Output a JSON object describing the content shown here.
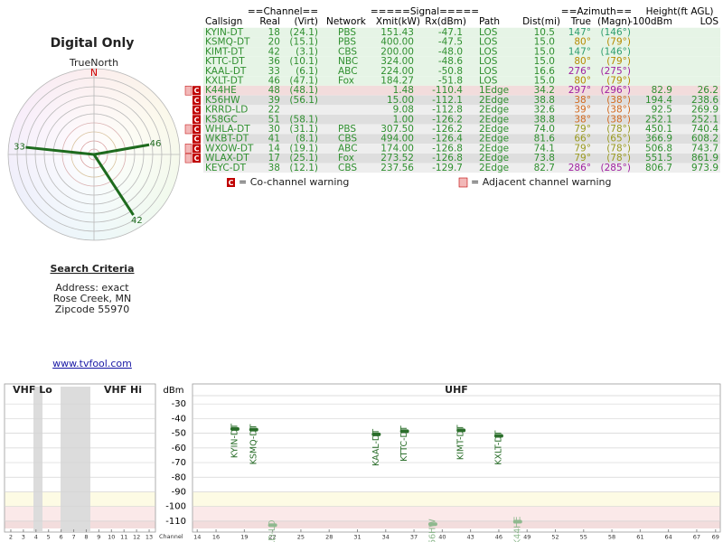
{
  "header": {
    "title": "Digital Only"
  },
  "compass": {
    "label": "TrueNorth",
    "north": "N",
    "rays": [
      {
        "label": "33",
        "azimuth": 276
      },
      {
        "label": "46",
        "azimuth": 80
      },
      {
        "label": "42",
        "azimuth": 147
      }
    ]
  },
  "table": {
    "group_headers": [
      "==Channel==",
      "=====Signal=====",
      "==Azimuth==",
      "Height(ft AGL)"
    ],
    "columns": [
      "Callsign",
      "Real",
      "(Virt)",
      "Network",
      "Xmit(kW)",
      "Rx(dBm)",
      "Path",
      "Dist(mi)",
      "True",
      "(Magn)",
      "-100dBm",
      "LOS"
    ],
    "rows": [
      {
        "cells": [
          "KYIN-DT",
          "18",
          "(24.1)",
          "PBS",
          "151.43",
          "-47.1",
          "LOS",
          "10.5",
          "147°",
          "(146°)",
          null,
          null
        ],
        "bg": "#e6f4e6",
        "az_color": "#2e9e6e"
      },
      {
        "cells": [
          "KSMQ-DT",
          "20",
          "(15.1)",
          "PBS",
          "400.00",
          "-47.5",
          "LOS",
          "15.0",
          "80°",
          "(79°)",
          null,
          null
        ],
        "bg": "#e6f4e6",
        "az_color": "#b58a00"
      },
      {
        "cells": [
          "KIMT-DT",
          "42",
          "(3.1)",
          "CBS",
          "200.00",
          "-48.0",
          "LOS",
          "15.0",
          "147°",
          "(146°)",
          null,
          null
        ],
        "bg": "#e6f4e6",
        "az_color": "#2e9e6e"
      },
      {
        "cells": [
          "KTTC-DT",
          "36",
          "(10.1)",
          "NBC",
          "324.00",
          "-48.6",
          "LOS",
          "15.0",
          "80°",
          "(79°)",
          null,
          null
        ],
        "bg": "#e6f4e6",
        "az_color": "#b58a00"
      },
      {
        "cells": [
          "KAAL-DT",
          "33",
          "(6.1)",
          "ABC",
          "224.00",
          "-50.8",
          "LOS",
          "16.6",
          "276°",
          "(275°)",
          null,
          null
        ],
        "bg": "#e6f4e6",
        "az_color": "#a020a0"
      },
      {
        "cells": [
          "KXLT-DT",
          "46",
          "(47.1)",
          "Fox",
          "184.27",
          "-51.8",
          "LOS",
          "15.0",
          "80°",
          "(79°)",
          null,
          null
        ],
        "bg": "#e6f4e6",
        "az_color": "#b58a00"
      },
      {
        "cells": [
          "K44HE",
          "48",
          "(48.1)",
          null,
          "1.48",
          "-110.4",
          "1Edge",
          "34.2",
          "297°",
          "(296°)",
          "82.9",
          "26.2"
        ],
        "bg": "#f2dcdc",
        "az_color": "#a020a0",
        "co_channel": true,
        "adjacent": true
      },
      {
        "cells": [
          "K56HW",
          "39",
          "(56.1)",
          null,
          "15.00",
          "-112.1",
          "2Edge",
          "38.8",
          "38°",
          "(38°)",
          "194.4",
          "238.6"
        ],
        "bg": "#dedede",
        "az_color": "#d2691e",
        "co_channel": true
      },
      {
        "cells": [
          "KRRD-LD",
          "22",
          null,
          null,
          "9.08",
          "-112.8",
          "2Edge",
          "32.6",
          "39°",
          "(38°)",
          "92.5",
          "269.9"
        ],
        "bg": "#eeeeee",
        "az_color": "#d2691e",
        "co_channel": true
      },
      {
        "cells": [
          "K58GC",
          "51",
          "(58.1)",
          null,
          "1.00",
          "-126.2",
          "2Edge",
          "38.8",
          "38°",
          "(38°)",
          "252.1",
          "252.1"
        ],
        "bg": "#dedede",
        "az_color": "#d2691e",
        "co_channel": true
      },
      {
        "cells": [
          "WHLA-DT",
          "30",
          "(31.1)",
          "PBS",
          "307.50",
          "-126.2",
          "2Edge",
          "74.0",
          "79°",
          "(78°)",
          "450.1",
          "740.4"
        ],
        "bg": "#eeeeee",
        "az_color": "#9a9a20",
        "co_channel": true,
        "adjacent": true
      },
      {
        "cells": [
          "WKBT-DT",
          "41",
          "(8.1)",
          "CBS",
          "494.00",
          "-126.4",
          "2Edge",
          "81.6",
          "66°",
          "(65°)",
          "366.9",
          "608.2"
        ],
        "bg": "#dedede",
        "az_color": "#9a9a20",
        "co_channel": true
      },
      {
        "cells": [
          "WXOW-DT",
          "14",
          "(19.1)",
          "ABC",
          "174.00",
          "-126.8",
          "2Edge",
          "74.1",
          "79°",
          "(78°)",
          "506.8",
          "743.7"
        ],
        "bg": "#eeeeee",
        "az_color": "#9a9a20",
        "co_channel": true,
        "adjacent": true
      },
      {
        "cells": [
          "WLAX-DT",
          "17",
          "(25.1)",
          "Fox",
          "273.52",
          "-126.8",
          "2Edge",
          "73.8",
          "79°",
          "(78°)",
          "551.5",
          "861.9"
        ],
        "bg": "#dedede",
        "az_color": "#9a9a20",
        "co_channel": true,
        "adjacent": true
      },
      {
        "cells": [
          "KEYC-DT",
          "38",
          "(12.1)",
          "CBS",
          "237.56",
          "-129.7",
          "2Edge",
          "82.7",
          "286°",
          "(285°)",
          "806.7",
          "973.9"
        ],
        "bg": "#eeeeee",
        "az_color": "#a020a0"
      }
    ]
  },
  "warning_legend": {
    "co_icon": "C",
    "co_text": "= Co-channel warning",
    "adj_text": "= Adjacent channel warning"
  },
  "search": {
    "title": "Search Criteria",
    "lines": [
      "Address: exact",
      "Rose Creek, MN",
      "Zipcode 55970"
    ]
  },
  "link": "www.tvfool.com",
  "chart_data": {
    "type": "scatter",
    "x_label": "Channel",
    "y_label": "dBm",
    "panel_titles": [
      "VHF Lo",
      "VHF Hi",
      "UHF"
    ],
    "ylim": [
      -20,
      -115
    ],
    "yticks": [
      -30,
      -40,
      -50,
      -60,
      -70,
      -80,
      -90,
      -100,
      -110
    ],
    "grid": true,
    "vhf_xlim": [
      1.5,
      13.5
    ],
    "vhf_xticks": [
      2,
      3,
      4,
      5,
      6,
      7,
      8,
      9,
      10,
      11,
      12,
      13
    ],
    "xlim": [
      13.5,
      69.5
    ],
    "xticks": [
      14,
      16,
      19,
      22,
      25,
      28,
      31,
      34,
      37,
      40,
      43,
      46,
      49,
      52,
      55,
      58,
      61,
      64,
      67,
      69
    ],
    "bands": [
      {
        "from": -90,
        "to": -100,
        "color": "#fdfbe4"
      },
      {
        "from": -100,
        "to": -110,
        "color": "#fbe9e9"
      },
      {
        "from": -110,
        "to": -115,
        "color": "#f3dddd"
      }
    ],
    "x": [
      18,
      20,
      33,
      36,
      42,
      46,
      22,
      39,
      48
    ],
    "values": [
      -47.1,
      -47.5,
      -50.8,
      -48.6,
      -48.0,
      -51.8,
      -112.8,
      -112.1,
      -110.4
    ],
    "point_labels": [
      "KYIN-DT",
      "KSMQ-DT",
      "KAAL-DT",
      "KTTC-DT",
      "KIMT-DT",
      "KXLT-DT",
      "KRRD-LD",
      "K56HW",
      "K44HE"
    ],
    "colors": [
      "#2a6e2a",
      "#2a6e2a",
      "#2a6e2a",
      "#2a6e2a",
      "#2a6e2a",
      "#2a6e2a",
      "#8fb98f",
      "#8fb98f",
      "#8fb98f"
    ]
  }
}
